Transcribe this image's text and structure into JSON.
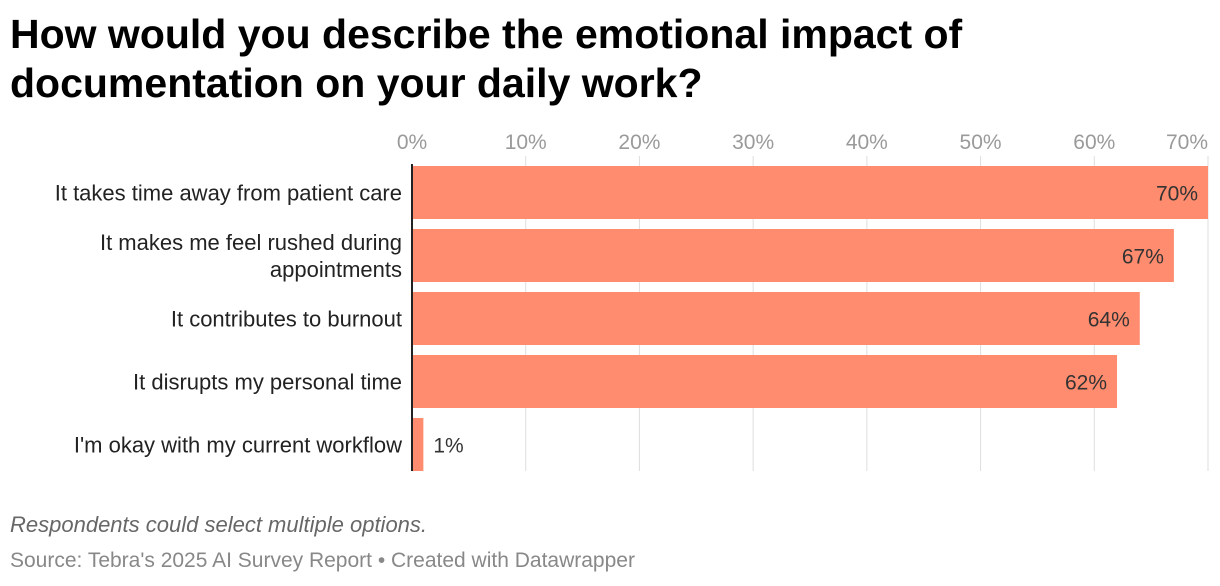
{
  "title": "How would you describe the emotional impact of documentation on your daily work?",
  "note": "Respondents could select multiple options.",
  "source": "Source: Tebra's 2025 AI Survey Report • Created with Datawrapper",
  "colors": {
    "bar": "#ff8c6e",
    "grid": "#dedede",
    "axis": "#222222",
    "tick": "#9a9a9a"
  },
  "chart_data": {
    "type": "bar",
    "orientation": "horizontal",
    "title": "How would you describe the emotional impact of documentation on your daily work?",
    "xlim": [
      0,
      70
    ],
    "grid": true,
    "ticks": [
      0,
      10,
      20,
      30,
      40,
      50,
      60,
      70
    ],
    "tick_labels": [
      "0%",
      "10%",
      "20%",
      "30%",
      "40%",
      "50%",
      "60%",
      "70%"
    ],
    "categories": [
      [
        "It takes time away from patient care"
      ],
      [
        "It makes me feel rushed during",
        "appointments"
      ],
      [
        "It contributes to burnout"
      ],
      [
        "It disrupts my personal time"
      ],
      [
        "I'm okay with my current workflow"
      ]
    ],
    "values": [
      70,
      67,
      64,
      62,
      1
    ],
    "value_labels": [
      "70%",
      "67%",
      "64%",
      "62%",
      "1%"
    ]
  }
}
